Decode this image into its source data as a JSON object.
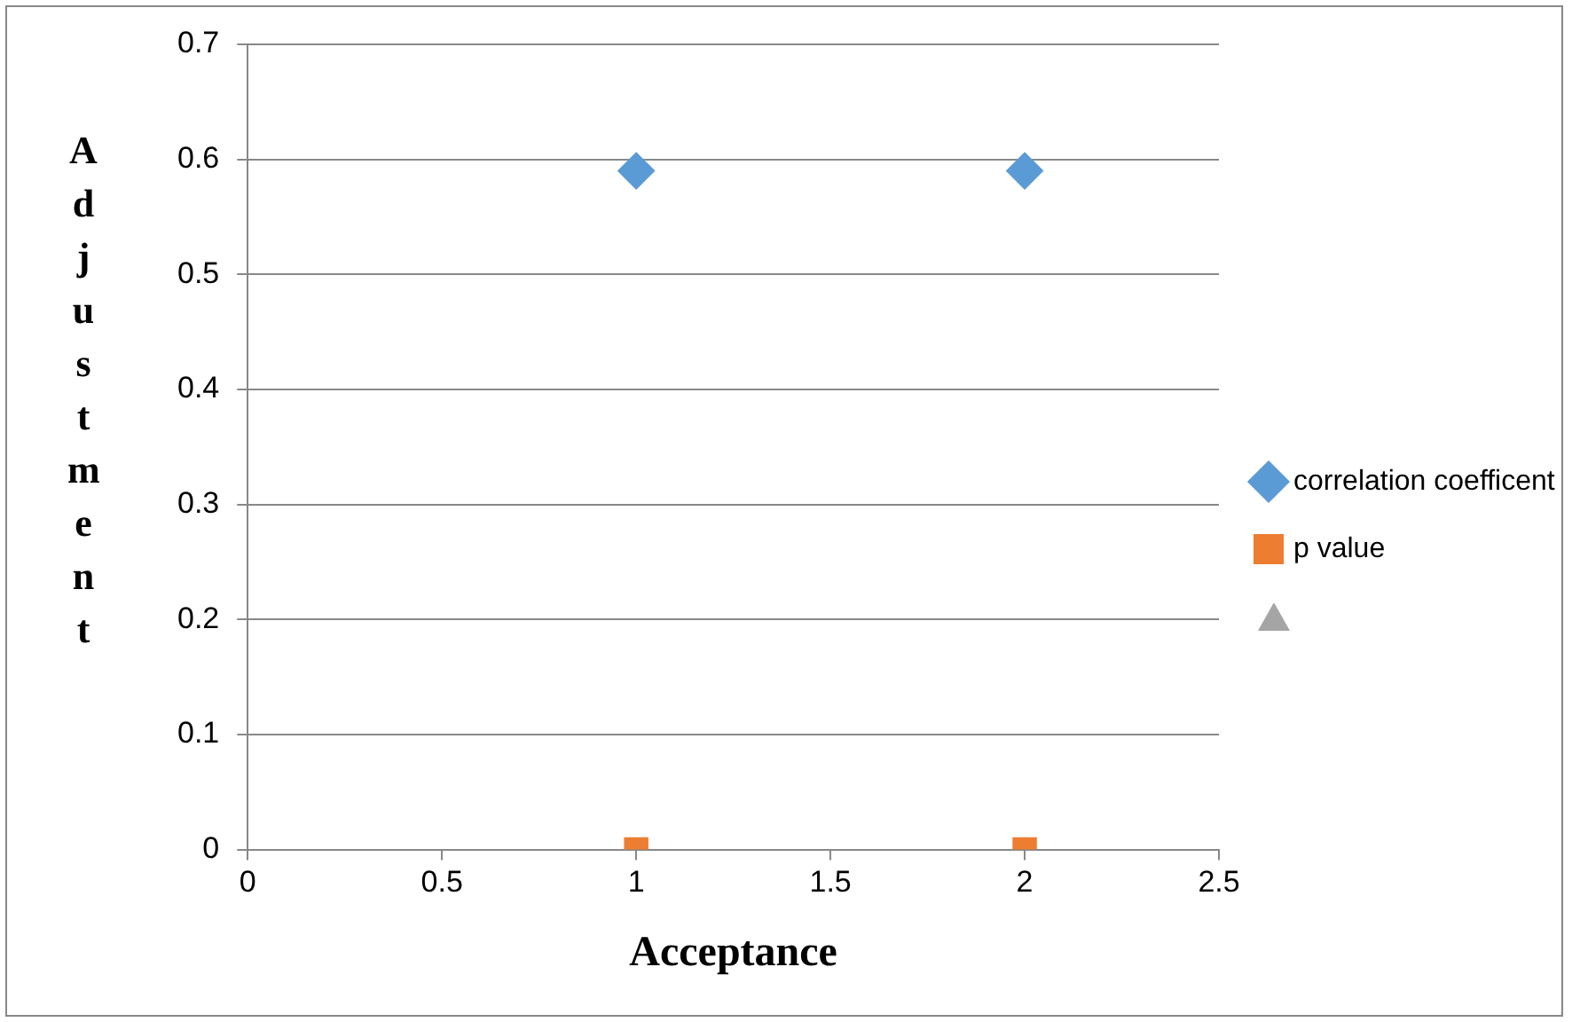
{
  "chart_data": {
    "type": "scatter",
    "xlabel": "Acceptance",
    "ylabel": "Adjustment",
    "xlim": [
      0,
      2.5
    ],
    "xticks": [
      0,
      0.5,
      1,
      1.5,
      2,
      2.5
    ],
    "ylim": [
      0,
      0.7
    ],
    "yticks": [
      0,
      0.1,
      0.2,
      0.3,
      0.4,
      0.5,
      0.6,
      0.7
    ],
    "grid": "y",
    "legend": "right",
    "x": [
      1,
      2
    ],
    "series": [
      {
        "name": "correlation coefficent",
        "color": "#5b9bd5",
        "marker": "diamond",
        "values": [
          0.59,
          0.59
        ]
      },
      {
        "name": "p value",
        "color": "#ed7d31",
        "marker": "square",
        "values": [
          0,
          0
        ]
      },
      {
        "color": "#a5a5a5",
        "marker": "triangle",
        "values": [
          null,
          null
        ]
      }
    ]
  }
}
